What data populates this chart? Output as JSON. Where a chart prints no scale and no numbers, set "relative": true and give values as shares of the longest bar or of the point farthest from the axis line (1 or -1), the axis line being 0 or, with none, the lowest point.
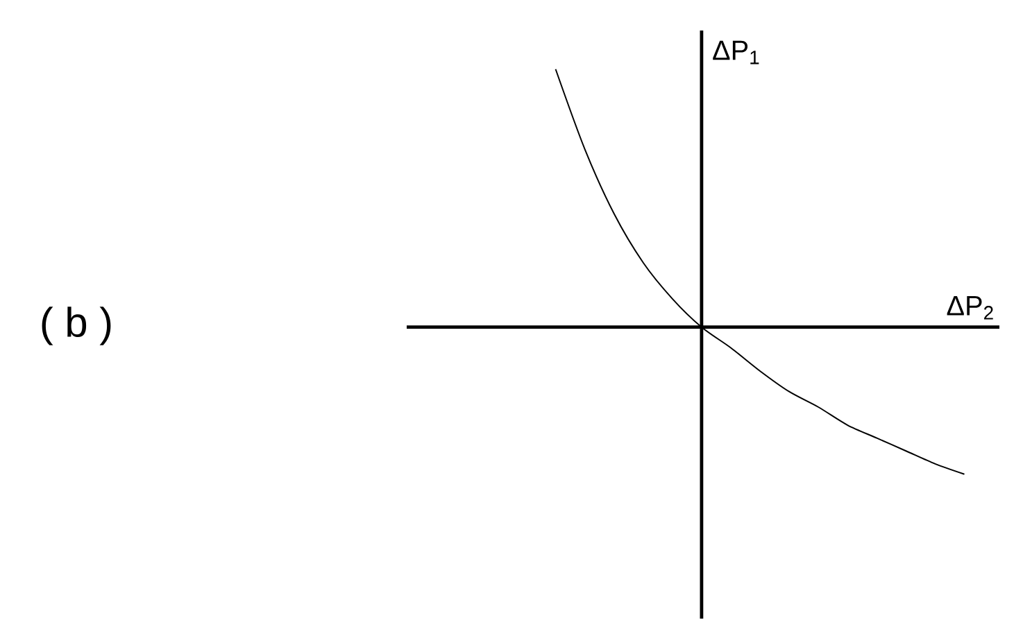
{
  "chart_data": {
    "type": "line",
    "relative": true,
    "title": "( b )",
    "xlabel": "ΔP$_{2}$",
    "ylabel": "ΔP$_{1}$",
    "categories": [
      null,
      null,
      null,
      null,
      null,
      null,
      null,
      null,
      null,
      null,
      null,
      null,
      null,
      null,
      null
    ],
    "series": [
      {
        "color": "#000000",
        "values": [
          1,
          0.69,
          0.44,
          0.25,
          0.11,
          0,
          -0.08,
          -0.17,
          -0.25,
          -0.31,
          -0.38,
          -0.43,
          -0.48,
          -0.53,
          -0.57
        ]
      }
    ]
  }
}
